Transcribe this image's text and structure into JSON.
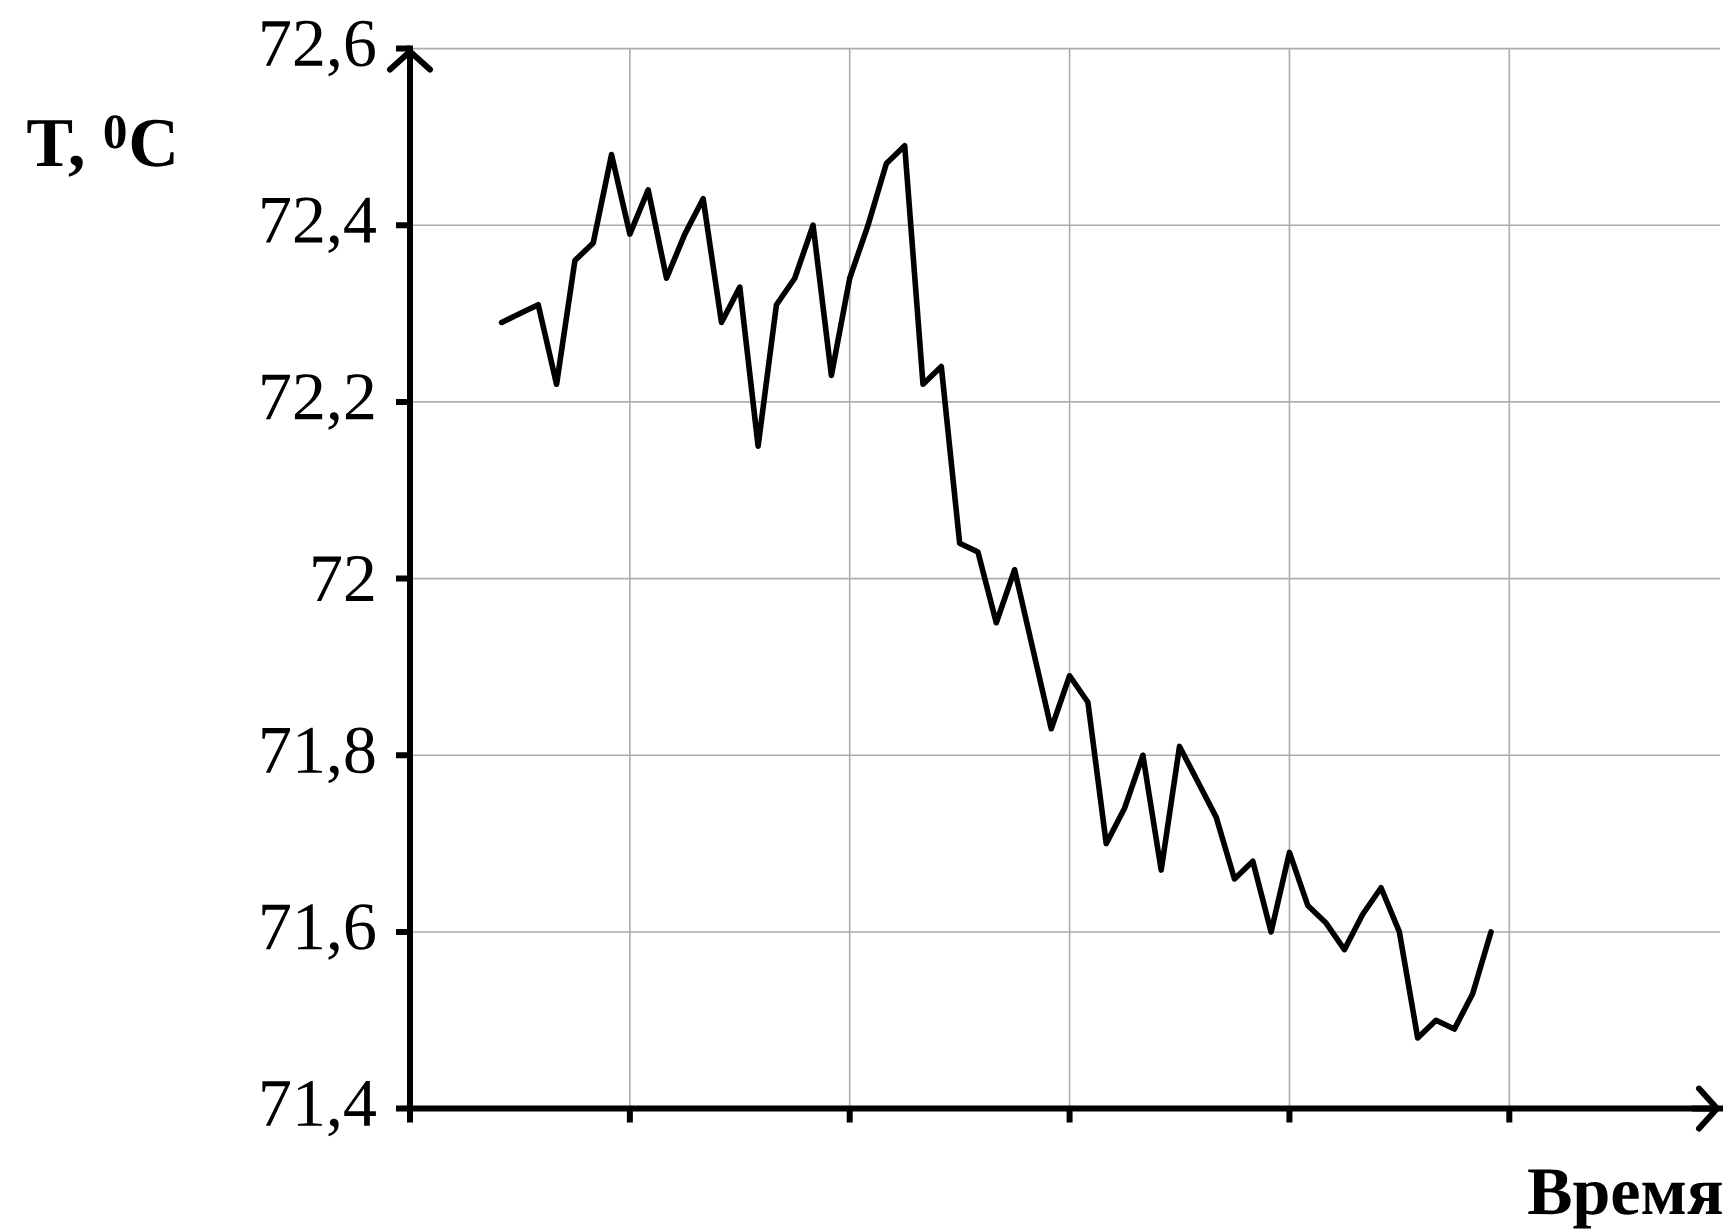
{
  "chart_data": {
    "type": "line",
    "xlabel": "Время",
    "ylabel": "T, $^{0}$C",
    "categories": [
      null,
      null,
      null,
      null,
      null,
      null,
      null,
      null,
      null,
      null,
      null,
      null,
      null,
      null,
      null,
      null,
      null,
      null,
      null,
      null,
      null,
      null,
      null,
      null,
      null,
      null,
      null,
      null,
      null,
      null,
      null,
      null,
      null,
      null,
      null,
      null,
      null,
      null,
      null,
      null,
      null,
      null,
      null,
      null,
      null,
      null,
      null,
      null,
      null,
      null,
      null,
      null,
      null,
      null,
      null,
      null,
      null,
      null,
      null,
      null,
      null,
      null,
      null,
      null,
      null,
      null,
      null,
      null,
      null,
      null,
      null,
      null
    ],
    "values": [
      null,
      null,
      null,
      null,
      null,
      72.29,
      72.3,
      72.31,
      72.22,
      72.36,
      72.38,
      72.48,
      72.39,
      72.44,
      72.34,
      72.39,
      72.43,
      72.29,
      72.33,
      72.15,
      72.31,
      72.34,
      72.4,
      72.23,
      72.34,
      72.4,
      72.47,
      72.49,
      72.22,
      72.24,
      72.04,
      72.03,
      71.95,
      72.01,
      71.92,
      71.83,
      71.89,
      71.86,
      71.7,
      71.74,
      71.8,
      71.67,
      71.81,
      71.77,
      71.73,
      71.66,
      71.68,
      71.6,
      71.69,
      71.63,
      71.61,
      71.58,
      71.62,
      71.65,
      71.6,
      71.48,
      71.5,
      71.49,
      71.53,
      71.6,
      null,
      null,
      null,
      null,
      null,
      null,
      null,
      null,
      null,
      null,
      null,
      null
    ],
    "color": "#000000",
    "ylim": [
      71.4,
      72.6
    ],
    "yticks": [
      {
        "value": 71.4,
        "label": "71,4"
      },
      {
        "value": 71.6,
        "label": "71,6"
      },
      {
        "value": 71.8,
        "label": "71,8"
      },
      72,
      {
        "value": 72.2,
        "label": "72,2"
      },
      {
        "value": 72.4,
        "label": "72,4"
      },
      {
        "value": 72.6,
        "label": "72,6"
      }
    ],
    "grid": true
  }
}
